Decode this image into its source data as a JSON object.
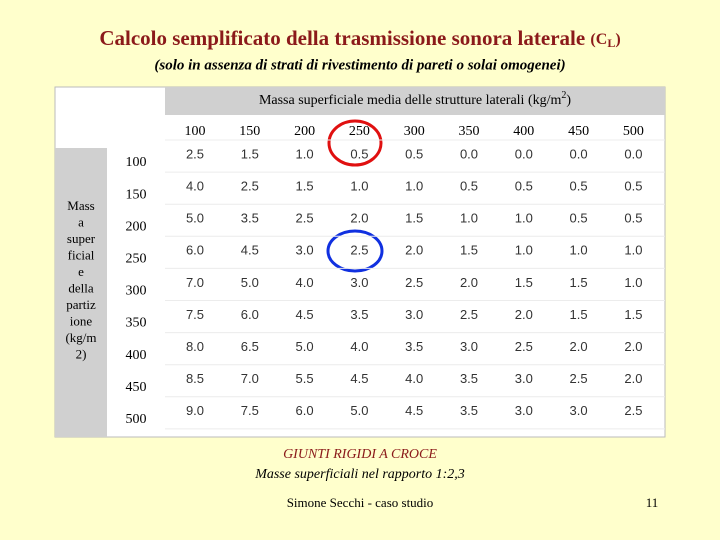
{
  "title": {
    "text": "Calcolo semplificato della trasmissione sonora laterale",
    "symbol_open": "(C",
    "symbol_sub": "L",
    "symbol_close": ")"
  },
  "subtitle": "(solo in assenza di strati di rivestimento di pareti o solai omogenei)",
  "table": {
    "column_group": {
      "text": "Massa superficiale media delle strutture laterali (kg/m",
      "sup": "2",
      "close": ")"
    },
    "row_group_lines": [
      "Mass",
      "a",
      "super",
      "ficial",
      "e",
      "della",
      "partiz",
      "ione",
      "(kg/m",
      "2)"
    ],
    "columns": [
      100,
      150,
      200,
      250,
      300,
      350,
      400,
      450,
      500
    ],
    "row_headers": [
      100,
      150,
      200,
      250,
      300,
      350,
      400,
      450,
      500
    ],
    "rows": [
      [
        "2.5",
        "1.5",
        "1.0",
        "0.5",
        "0.5",
        "0.0",
        "0.0",
        "0.0",
        "0.0"
      ],
      [
        "4.0",
        "2.5",
        "1.5",
        "1.0",
        "1.0",
        "0.5",
        "0.5",
        "0.5",
        "0.5"
      ],
      [
        "5.0",
        "3.5",
        "2.5",
        "2.0",
        "1.5",
        "1.0",
        "1.0",
        "0.5",
        "0.5"
      ],
      [
        "6.0",
        "4.5",
        "3.0",
        "2.5",
        "2.0",
        "1.5",
        "1.0",
        "1.0",
        "1.0"
      ],
      [
        "7.0",
        "5.0",
        "4.0",
        "3.0",
        "2.5",
        "2.0",
        "1.5",
        "1.5",
        "1.0"
      ],
      [
        "7.5",
        "6.0",
        "4.5",
        "3.5",
        "3.0",
        "2.5",
        "2.0",
        "1.5",
        "1.5"
      ],
      [
        "8.0",
        "6.5",
        "5.0",
        "4.0",
        "3.5",
        "3.0",
        "2.5",
        "2.0",
        "2.0"
      ],
      [
        "8.5",
        "7.0",
        "5.5",
        "4.5",
        "4.0",
        "3.5",
        "3.0",
        "2.5",
        "2.0"
      ],
      [
        "9.0",
        "7.5",
        "6.0",
        "5.0",
        "4.5",
        "3.5",
        "3.0",
        "3.0",
        "2.5"
      ]
    ]
  },
  "caption": {
    "line1": "GIUNTI RIGIDI A CROCE",
    "line2": "Masse superficiali nel rapporto 1:2,3"
  },
  "footer": {
    "author": "Simone Secchi - caso studio",
    "page": "11"
  }
}
